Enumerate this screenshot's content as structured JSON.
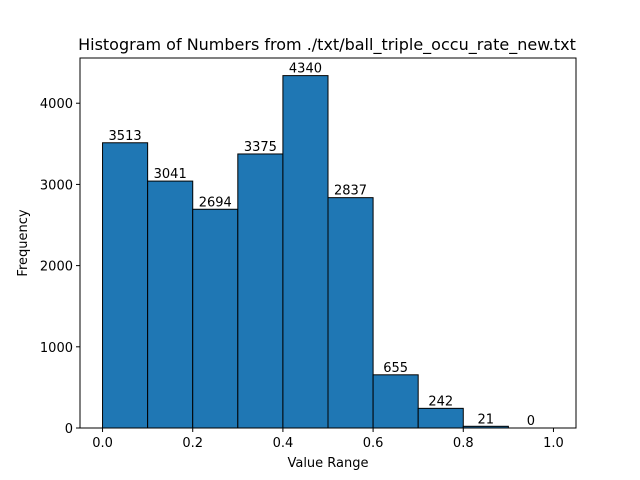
{
  "chart_data": {
    "type": "bar",
    "title": "Histogram of Numbers from ./txt/ball_triple_occu_rate_new.txt",
    "xlabel": "Value Range",
    "ylabel": "Frequency",
    "bins": [
      {
        "start": 0.0,
        "end": 0.1,
        "value": 3513
      },
      {
        "start": 0.1,
        "end": 0.2,
        "value": 3041
      },
      {
        "start": 0.2,
        "end": 0.3,
        "value": 2694
      },
      {
        "start": 0.3,
        "end": 0.4,
        "value": 3375
      },
      {
        "start": 0.4,
        "end": 0.5,
        "value": 4340
      },
      {
        "start": 0.5,
        "end": 0.6,
        "value": 2837
      },
      {
        "start": 0.6,
        "end": 0.7,
        "value": 655
      },
      {
        "start": 0.7,
        "end": 0.8,
        "value": 242
      },
      {
        "start": 0.8,
        "end": 0.9,
        "value": 21
      },
      {
        "start": 0.9,
        "end": 1.0,
        "value": 0
      }
    ],
    "xlim": [
      -0.05,
      1.05
    ],
    "ylim": [
      0,
      4557
    ],
    "xticks": [
      0.0,
      0.2,
      0.4,
      0.6,
      0.8,
      1.0
    ],
    "xtick_labels": [
      "0.0",
      "0.2",
      "0.4",
      "0.6",
      "0.8",
      "1.0"
    ],
    "yticks": [
      0,
      1000,
      2000,
      3000,
      4000
    ],
    "ytick_labels": [
      "0",
      "1000",
      "2000",
      "3000",
      "4000"
    ],
    "bar_color": "#1f77b4",
    "edge_color": "#000000",
    "grid": false
  }
}
